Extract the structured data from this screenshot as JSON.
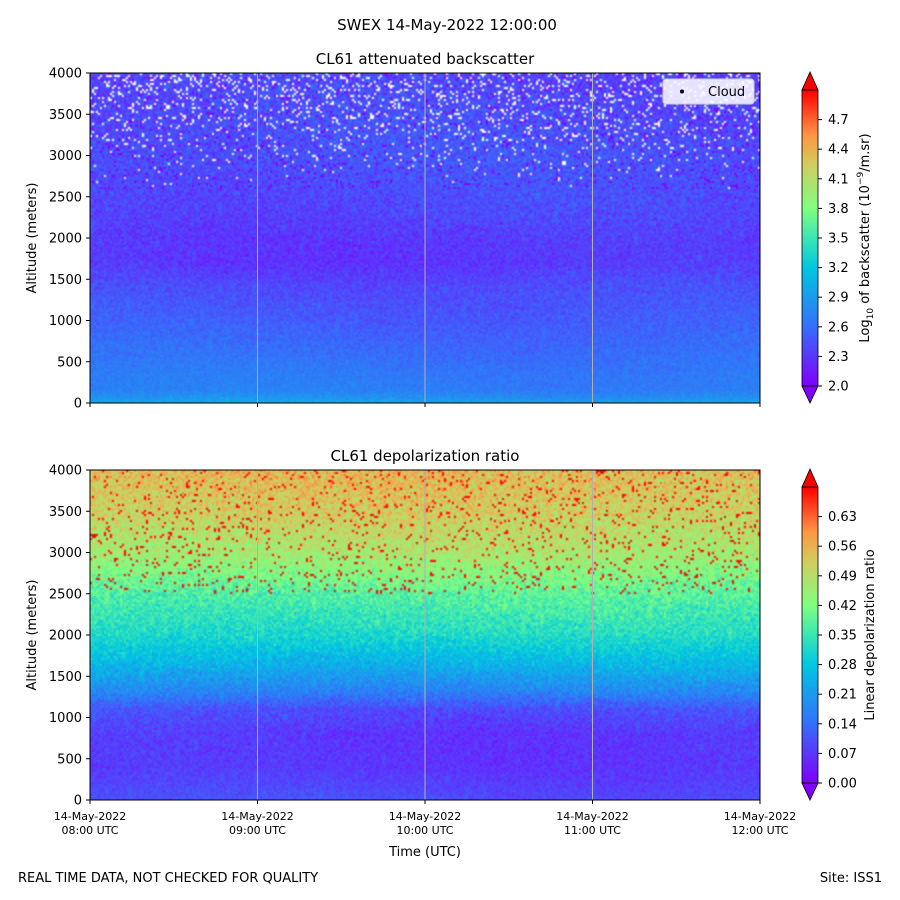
{
  "figure": {
    "suptitle": "SWEX 14-May-2022 12:00:00",
    "footer_left": "REAL TIME DATA, NOT CHECKED FOR QUALITY",
    "footer_right": "Site: ISS1"
  },
  "chart_data": [
    {
      "type": "heatmap",
      "title": "CL61 attenuated backscatter",
      "ylabel": "Altitude (meters)",
      "xlabel": "",
      "ylim": [
        0,
        4000
      ],
      "yticks": [
        0,
        500,
        1000,
        1500,
        2000,
        2500,
        3000,
        3500,
        4000
      ],
      "xlim": [
        "2022-05-14T08:00",
        "2022-05-14T12:00"
      ],
      "xticks": [
        "2022-05-14T08:00",
        "2022-05-14T09:00",
        "2022-05-14T10:00",
        "2022-05-14T11:00",
        "2022-05-14T12:00"
      ],
      "xtick_labels_visible": false,
      "grid": "x",
      "colormap": "rainbow",
      "colorbar": {
        "label_prefix": "Log",
        "label_sub": "10",
        "label_mid": " of backscatter (10",
        "label_sup": "−9",
        "label_suffix": "/m.sr)",
        "range": [
          2.0,
          5.0
        ],
        "ticks": [
          "2.0",
          "2.3",
          "2.6",
          "2.9",
          "3.2",
          "3.5",
          "3.8",
          "4.1",
          "4.4",
          "4.7"
        ],
        "extend": "both"
      },
      "legend": {
        "entries": [
          "Cloud"
        ],
        "placement": "top-right"
      },
      "profile": {
        "altitude_m": [
          0,
          50,
          150,
          300,
          600,
          1000,
          1400,
          1700,
          2000,
          2300,
          2700,
          3000,
          3400,
          4000
        ],
        "value": [
          3.0,
          2.85,
          2.7,
          2.68,
          2.6,
          2.5,
          2.42,
          2.3,
          2.32,
          2.38,
          2.42,
          2.45,
          2.42,
          2.38
        ]
      },
      "noise_above_m": 2600
    },
    {
      "type": "heatmap",
      "title": "CL61 depolarization ratio",
      "ylabel": "Altitude (meters)",
      "xlabel": "Time (UTC)",
      "ylim": [
        0,
        4000
      ],
      "yticks": [
        0,
        500,
        1000,
        1500,
        2000,
        2500,
        3000,
        3500,
        4000
      ],
      "xlim": [
        "2022-05-14T08:00",
        "2022-05-14T12:00"
      ],
      "xtick_labels": [
        [
          "14-May-2022",
          "08:00 UTC"
        ],
        [
          "14-May-2022",
          "09:00 UTC"
        ],
        [
          "14-May-2022",
          "10:00 UTC"
        ],
        [
          "14-May-2022",
          "11:00 UTC"
        ],
        [
          "14-May-2022",
          "12:00 UTC"
        ]
      ],
      "grid": "x",
      "colormap": "rainbow",
      "colorbar": {
        "label": "Linear depolarization ratio",
        "range": [
          0.0,
          0.7
        ],
        "ticks": [
          "0.00",
          "0.07",
          "0.14",
          "0.21",
          "0.28",
          "0.35",
          "0.42",
          "0.49",
          "0.56",
          "0.63"
        ],
        "extend": "both"
      },
      "profile": {
        "altitude_m": [
          0,
          100,
          400,
          800,
          1100,
          1300,
          1600,
          2000,
          2500,
          3000,
          3500,
          4000
        ],
        "value": [
          0.1,
          0.09,
          0.07,
          0.07,
          0.1,
          0.17,
          0.24,
          0.32,
          0.38,
          0.47,
          0.52,
          0.55
        ]
      }
    }
  ]
}
